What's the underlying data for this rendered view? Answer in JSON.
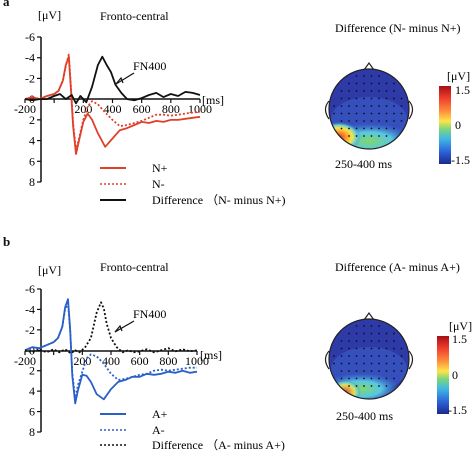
{
  "panels": [
    {
      "letter": "a",
      "erp": {
        "title": "Fronto-central",
        "unit": "[μV]",
        "time_unit": "[ms]",
        "annotation": "FN400",
        "legend": [
          {
            "label": "N+",
            "style": "solid",
            "color": "#e0402a"
          },
          {
            "label": "N-",
            "style": "dotted",
            "color": "#e0402a"
          },
          {
            "label": "Difference   （N- minus N+)",
            "style": "solid",
            "color": "#111111"
          }
        ]
      },
      "topo": {
        "title": "Difference (N- minus N+)",
        "window": "250-400 ms",
        "unit": "[μV]",
        "max": "1.5",
        "mid": "0",
        "min": "-1.5"
      }
    },
    {
      "letter": "b",
      "erp": {
        "title": "Fronto-central",
        "unit": "[μV]",
        "time_unit": "[ms]",
        "annotation": "FN400",
        "legend": [
          {
            "label": "A+",
            "style": "solid",
            "color": "#2a5fc9"
          },
          {
            "label": "A-",
            "style": "dotted",
            "color": "#2a5fc9"
          },
          {
            "label": "Difference   （A- minus A+)",
            "style": "dotted",
            "color": "#111111"
          }
        ]
      },
      "topo": {
        "title": "Difference (A- minus A+)",
        "window": "250-400 ms",
        "unit": "[μV]",
        "max": "1.5",
        "mid": "0",
        "min": "-1.5"
      }
    }
  ],
  "chart_data": [
    {
      "type": "line",
      "title": "Fronto-central",
      "ylabel": "[μV]",
      "xlabel": "[ms]",
      "xlim": [
        -200,
        1000
      ],
      "ylim": [
        -6,
        8
      ],
      "y_inverted": true,
      "x_ticks": [
        "-200",
        "0",
        "200",
        "400",
        "600",
        "800",
        "1000"
      ],
      "y_ticks": [
        "-6",
        "-4",
        "-2",
        "0",
        "2",
        "4",
        "6",
        "8"
      ],
      "series": [
        {
          "name": "N+",
          "style": "solid",
          "color": "#e0402a",
          "x": [
            -200,
            -150,
            -100,
            -50,
            0,
            30,
            60,
            80,
            100,
            115,
            130,
            150,
            170,
            200,
            230,
            260,
            300,
            350,
            400,
            450,
            500,
            550,
            600,
            650,
            700,
            750,
            800,
            850,
            900,
            950,
            1000
          ],
          "y": [
            0,
            -0.2,
            0,
            -0.3,
            -0.5,
            -0.8,
            -1.8,
            -3.3,
            -4.1,
            -1,
            2.6,
            5.3,
            4,
            2.2,
            1.4,
            2,
            3.3,
            4.6,
            3.8,
            3,
            2.8,
            2.5,
            2.2,
            2.3,
            2.1,
            2.2,
            2,
            2,
            1.9,
            1.8,
            1.7
          ]
        },
        {
          "name": "N-",
          "style": "dotted",
          "color": "#e0402a",
          "x": [
            -200,
            -150,
            -100,
            -50,
            0,
            30,
            60,
            80,
            100,
            115,
            130,
            150,
            170,
            200,
            230,
            260,
            300,
            350,
            400,
            450,
            500,
            550,
            600,
            650,
            700,
            750,
            800,
            850,
            900,
            950,
            1000
          ],
          "y": [
            0,
            -0.2,
            0,
            -0.3,
            -0.5,
            -0.8,
            -1.8,
            -3.2,
            -4.3,
            -1.3,
            2.3,
            4.9,
            3.8,
            2,
            0.7,
            0.2,
            0.5,
            1.3,
            2,
            2.6,
            2.5,
            2.3,
            2.1,
            1.8,
            1.5,
            1.5,
            1.6,
            1.5,
            1.4,
            1.3,
            1.2
          ]
        },
        {
          "name": "Difference (N- minus N+)",
          "style": "solid",
          "color": "#111111",
          "x": [
            -200,
            -150,
            -100,
            -50,
            0,
            40,
            80,
            120,
            150,
            180,
            220,
            260,
            300,
            330,
            360,
            390,
            420,
            460,
            500,
            550,
            600,
            650,
            700,
            750,
            800,
            850,
            900,
            950,
            1000
          ],
          "y": [
            0,
            0.1,
            0,
            0,
            -0.3,
            -0.5,
            0,
            -0.4,
            0.4,
            -0.3,
            0.3,
            -1.2,
            -3.3,
            -4.1,
            -3.3,
            -2.6,
            -1.4,
            -0.6,
            0,
            0.1,
            -0.1,
            -0.4,
            -0.6,
            -0.2,
            -0.5,
            -0.3,
            -0.7,
            -0.6,
            -0.4
          ]
        }
      ]
    },
    {
      "type": "line",
      "title": "Fronto-central",
      "ylabel": "[μV]",
      "xlabel": "[ms]",
      "xlim": [
        -200,
        1000
      ],
      "ylim": [
        -6,
        8
      ],
      "y_inverted": true,
      "x_ticks": [
        "-200",
        "0",
        "200",
        "400",
        "600",
        "800",
        "1000"
      ],
      "y_ticks": [
        "-6",
        "-4",
        "-2",
        "0",
        "2",
        "4",
        "6",
        "8"
      ],
      "series": [
        {
          "name": "A+",
          "style": "solid",
          "color": "#2a5fc9",
          "x": [
            -200,
            -150,
            -100,
            -50,
            0,
            30,
            60,
            80,
            100,
            115,
            130,
            150,
            170,
            200,
            230,
            260,
            300,
            350,
            400,
            450,
            500,
            550,
            600,
            650,
            700,
            750,
            800,
            850,
            900,
            950,
            1000
          ],
          "y": [
            0,
            -0.3,
            -0.2,
            -0.5,
            -0.8,
            -1.2,
            -2.3,
            -4.2,
            -5,
            -2,
            2.5,
            5.2,
            3.9,
            2.4,
            2.5,
            3.1,
            4.3,
            4.8,
            3.8,
            3.1,
            2.9,
            2.6,
            2.6,
            2.3,
            2.4,
            2.3,
            2.1,
            2.2,
            2,
            2.2,
            2.1
          ]
        },
        {
          "name": "A-",
          "style": "dotted",
          "color": "#2a5fc9",
          "x": [
            -200,
            -150,
            -100,
            -50,
            0,
            30,
            60,
            80,
            100,
            115,
            130,
            150,
            170,
            200,
            230,
            260,
            300,
            350,
            400,
            450,
            500,
            550,
            600,
            650,
            700,
            750,
            800,
            850,
            900,
            950,
            1000
          ],
          "y": [
            0,
            -0.3,
            -0.2,
            -0.5,
            -0.8,
            -1.2,
            -2.3,
            -4,
            -4.6,
            -1.8,
            2.2,
            4.8,
            3.4,
            2.1,
            0.8,
            0.4,
            0.6,
            1.3,
            2.3,
            2.9,
            2.8,
            2.6,
            2.4,
            2.3,
            2,
            1.9,
            2,
            1.9,
            1.8,
            1.7,
            1.7
          ]
        },
        {
          "name": "Difference (A- minus A+)",
          "style": "dotted",
          "color": "#111111",
          "x": [
            -200,
            -150,
            -100,
            -50,
            0,
            40,
            80,
            120,
            150,
            180,
            220,
            260,
            300,
            330,
            350,
            370,
            400,
            440,
            480,
            520,
            560,
            600,
            650,
            700,
            750,
            800,
            850,
            900,
            950,
            1000
          ],
          "y": [
            0,
            0.2,
            -0.1,
            0.2,
            -0.1,
            0.2,
            -0.1,
            0.3,
            0,
            0.2,
            -0.3,
            -1.2,
            -3.7,
            -4.7,
            -4.1,
            -2.6,
            -1.2,
            -0.3,
            0.2,
            0,
            0.2,
            0.1,
            -0.1,
            0.2,
            0,
            -0.2,
            0.1,
            -0.1,
            0.1,
            0
          ]
        }
      ]
    }
  ]
}
